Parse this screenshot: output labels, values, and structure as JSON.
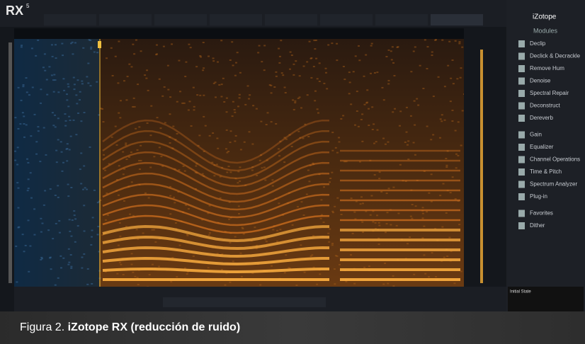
{
  "app": {
    "logo": "RX",
    "version": "5"
  },
  "sidebar": {
    "brand": "iZotope",
    "heading": "Modules",
    "modules": [
      "Declip",
      "Declick & Decrackle",
      "Remove Hum",
      "Denoise",
      "Spectral Repair",
      "Deconstruct",
      "Dereverb",
      "Gain",
      "Equalizer",
      "Channel Operations",
      "Time & Pitch",
      "Spectrum Analyzer",
      "Plug-in",
      "Favorites",
      "Dither"
    ]
  },
  "history": [
    "Initial State"
  ],
  "caption": {
    "label": "Figura 2.",
    "title": "iZotope RX (reducción de ruido)"
  }
}
